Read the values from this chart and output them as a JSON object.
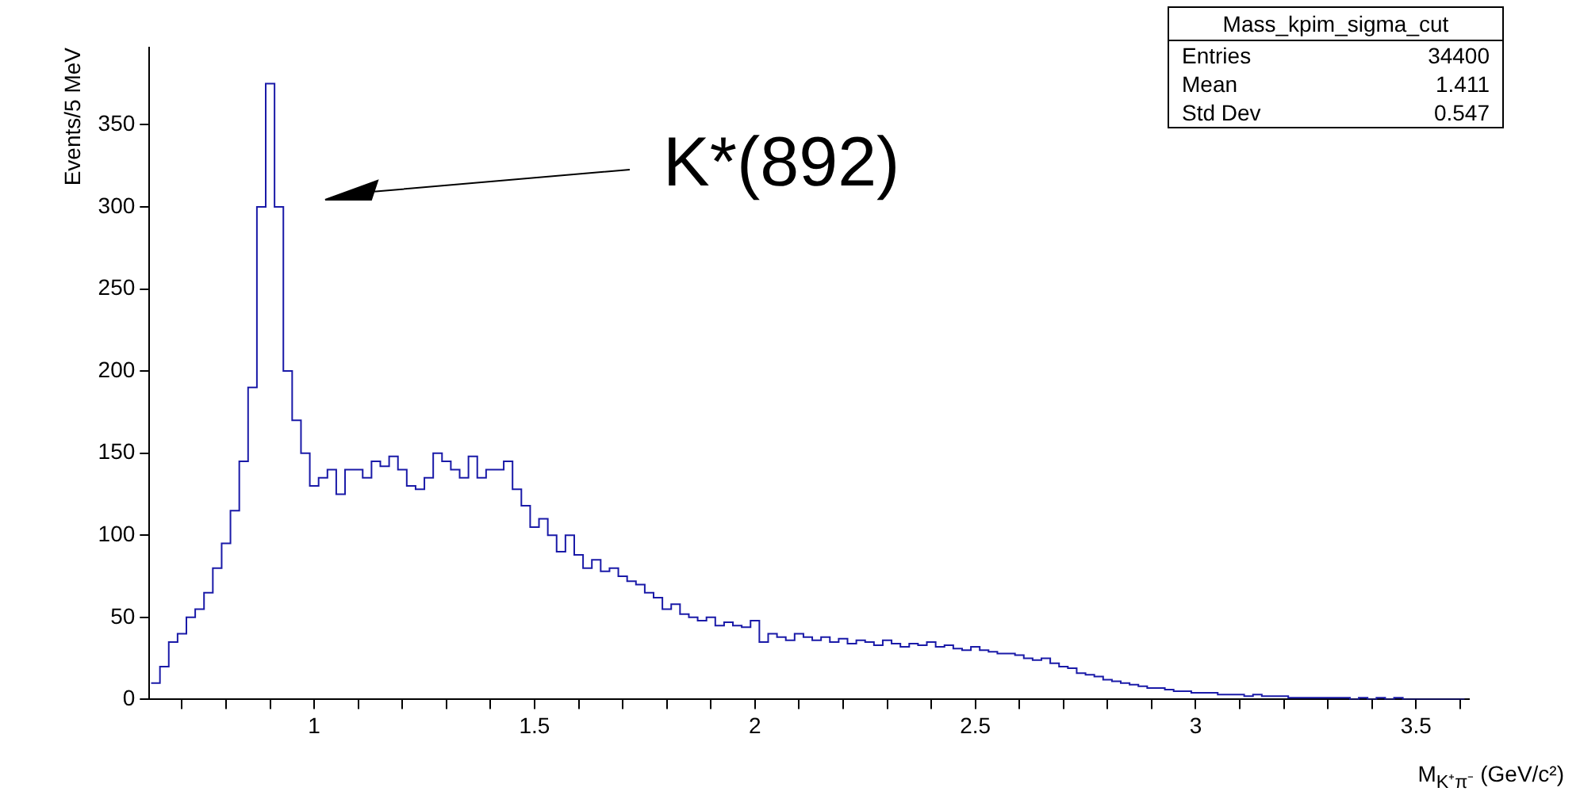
{
  "chart_data": {
    "type": "histogram",
    "xlabel": "M$_{K⁺π⁻}$ (GeV/c²)",
    "ylabel": "Events/5 MeV",
    "bins": [
      0.63,
      0.65,
      0.67,
      0.69,
      0.71,
      0.73,
      0.75,
      0.77,
      0.79,
      0.81,
      0.83,
      0.85,
      0.87,
      0.89,
      0.91,
      0.93,
      0.95,
      0.97,
      0.99,
      1.01,
      1.03,
      1.05,
      1.07,
      1.09,
      1.11,
      1.13,
      1.15,
      1.17,
      1.19,
      1.21,
      1.23,
      1.25,
      1.27,
      1.29,
      1.31,
      1.33,
      1.35,
      1.37,
      1.39,
      1.41,
      1.43,
      1.45,
      1.47,
      1.49,
      1.51,
      1.53,
      1.55,
      1.57,
      1.59,
      1.61,
      1.63,
      1.65,
      1.67,
      1.69,
      1.71,
      1.73,
      1.75,
      1.77,
      1.79,
      1.81,
      1.83,
      1.85,
      1.87,
      1.89,
      1.91,
      1.93,
      1.95,
      1.97,
      1.99,
      2.01,
      2.03,
      2.05,
      2.07,
      2.09,
      2.11,
      2.13,
      2.15,
      2.17,
      2.19,
      2.21,
      2.23,
      2.25,
      2.27,
      2.29,
      2.31,
      2.33,
      2.35,
      2.37,
      2.39,
      2.41,
      2.43,
      2.45,
      2.47,
      2.49,
      2.51,
      2.53,
      2.55,
      2.57,
      2.59,
      2.61,
      2.63,
      2.65,
      2.67,
      2.69,
      2.71,
      2.73,
      2.75,
      2.77,
      2.79,
      2.81,
      2.83,
      2.85,
      2.87,
      2.89,
      2.91,
      2.93,
      2.95,
      2.97,
      2.99,
      3.01,
      3.03,
      3.05,
      3.07,
      3.09,
      3.11,
      3.13,
      3.15,
      3.17,
      3.19,
      3.21,
      3.23,
      3.25,
      3.27,
      3.29,
      3.31,
      3.33,
      3.35,
      3.37,
      3.39,
      3.41,
      3.43,
      3.45,
      3.47,
      3.49,
      3.51,
      3.53,
      3.55,
      3.57,
      3.59,
      3.61
    ],
    "values": [
      10,
      20,
      35,
      40,
      50,
      55,
      65,
      80,
      95,
      115,
      145,
      190,
      300,
      375,
      300,
      200,
      170,
      150,
      130,
      135,
      140,
      125,
      140,
      140,
      135,
      145,
      142,
      148,
      140,
      130,
      128,
      135,
      150,
      145,
      140,
      135,
      148,
      135,
      140,
      140,
      145,
      128,
      118,
      105,
      110,
      100,
      90,
      100,
      88,
      80,
      85,
      78,
      80,
      75,
      72,
      70,
      65,
      62,
      55,
      58,
      52,
      50,
      48,
      50,
      45,
      47,
      45,
      44,
      48,
      35,
      40,
      38,
      36,
      40,
      38,
      36,
      38,
      35,
      37,
      34,
      36,
      35,
      33,
      36,
      34,
      32,
      34,
      33,
      35,
      32,
      33,
      31,
      30,
      32,
      30,
      29,
      28,
      28,
      27,
      25,
      24,
      25,
      22,
      20,
      19,
      16,
      15,
      14,
      12,
      11,
      10,
      9,
      8,
      7,
      7,
      6,
      5,
      5,
      4,
      4,
      4,
      3,
      3,
      3,
      2,
      3,
      2,
      2,
      2,
      1,
      1,
      1,
      1,
      1,
      1,
      1,
      0,
      1,
      0,
      1,
      0,
      1,
      0,
      0,
      0,
      0,
      0,
      0,
      0
    ],
    "color": "#1a1aa8",
    "xlim": [
      0.626,
      3.62
    ],
    "xticks": [
      {
        "value": 0.7,
        "label": null
      },
      {
        "value": 0.8,
        "label": null
      },
      {
        "value": 0.9,
        "label": null
      },
      1,
      {
        "value": 1.1,
        "label": null
      },
      {
        "value": 1.2,
        "label": null
      },
      {
        "value": 1.3,
        "label": null
      },
      {
        "value": 1.4,
        "label": null
      },
      1.5,
      {
        "value": 1.6,
        "label": null
      },
      {
        "value": 1.7,
        "label": null
      },
      {
        "value": 1.8,
        "label": null
      },
      {
        "value": 1.9,
        "label": null
      },
      2,
      {
        "value": 2.1,
        "label": null
      },
      {
        "value": 2.2,
        "label": null
      },
      {
        "value": 2.3,
        "label": null
      },
      {
        "value": 2.4,
        "label": null
      },
      2.5,
      {
        "value": 2.6,
        "label": null
      },
      {
        "value": 2.7,
        "label": null
      },
      {
        "value": 2.8,
        "label": null
      },
      {
        "value": 2.9,
        "label": null
      },
      3,
      {
        "value": 3.1,
        "label": null
      },
      {
        "value": 3.2,
        "label": null
      },
      {
        "value": 3.3,
        "label": null
      },
      {
        "value": 3.4,
        "label": null
      },
      3.5,
      {
        "value": 3.6,
        "label": null
      }
    ],
    "ylim": [
      0,
      397
    ],
    "yticks": [
      0,
      50,
      100,
      150,
      200,
      250,
      300,
      350
    ],
    "grid": false,
    "legend": false,
    "annotations": [
      "K*(892)",
      "Mass_kpim_sigma_cut",
      "Entries",
      "34400",
      "Mean",
      "1.411",
      "Std Dev",
      "0.547"
    ]
  }
}
